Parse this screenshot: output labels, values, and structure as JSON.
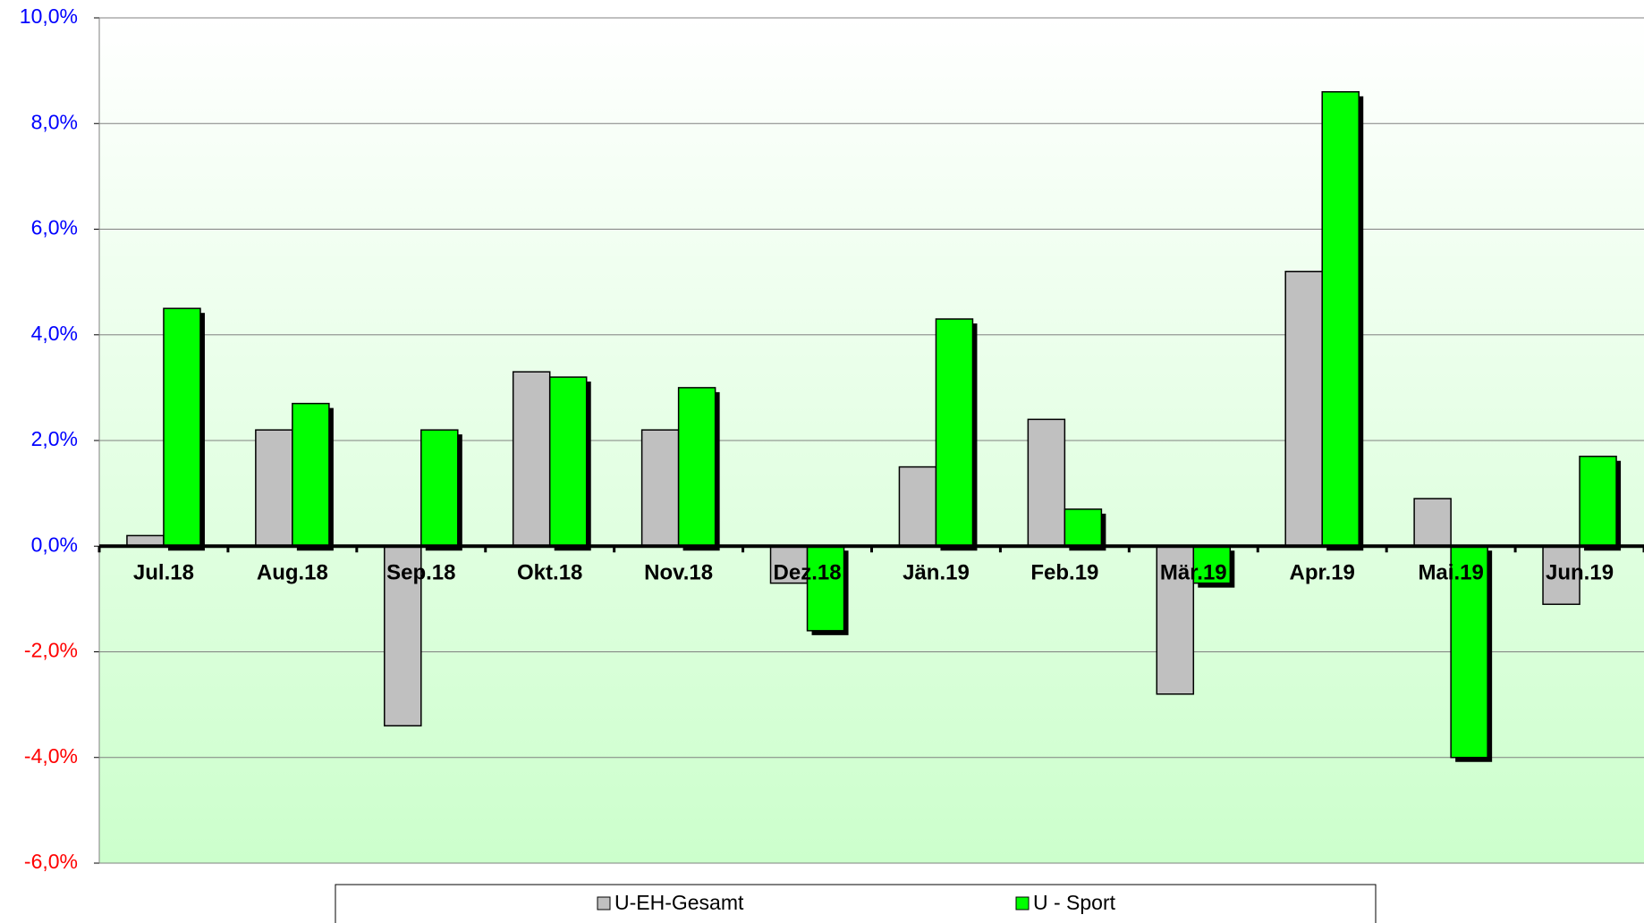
{
  "chart_data": {
    "type": "bar",
    "categories": [
      "Jul.18",
      "Aug.18",
      "Sep.18",
      "Okt.18",
      "Nov.18",
      "Dez.18",
      "Jän.19",
      "Feb.19",
      "Mär.19",
      "Apr.19",
      "Mai.19",
      "Jun.19"
    ],
    "series": [
      {
        "name": "U-EH-Gesamt",
        "color": "#c0c0c0",
        "shadow": false,
        "values": [
          0.2,
          2.2,
          -3.4,
          3.3,
          2.2,
          -0.7,
          1.5,
          2.4,
          -2.8,
          5.2,
          0.9,
          -1.1
        ]
      },
      {
        "name": "U - Sport",
        "color": "#00ff00",
        "shadow": true,
        "values": [
          4.5,
          2.7,
          2.2,
          3.2,
          3.0,
          -1.6,
          4.3,
          0.7,
          -0.7,
          8.6,
          -4.0,
          1.7
        ]
      }
    ],
    "ylim": [
      -6,
      10
    ],
    "yticks": [
      {
        "value": -6,
        "label": "-6,0%"
      },
      {
        "value": -4,
        "label": "-4,0%"
      },
      {
        "value": -2,
        "label": "-2,0%"
      },
      {
        "value": 0,
        "label": "0,0%"
      },
      {
        "value": 2,
        "label": "2,0%"
      },
      {
        "value": 4,
        "label": "4,0%"
      },
      {
        "value": 6,
        "label": "6,0%"
      },
      {
        "value": 8,
        "label": "8,0%"
      },
      {
        "value": 10,
        "label": "10,0%"
      }
    ],
    "grid": true,
    "legend": "bottom"
  }
}
